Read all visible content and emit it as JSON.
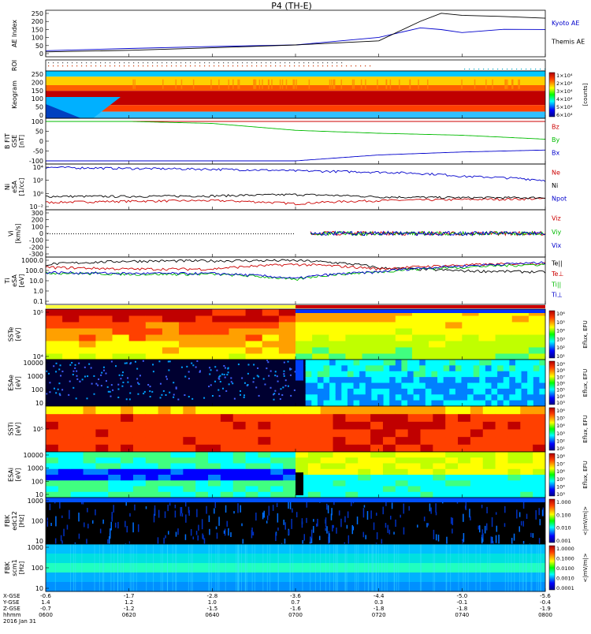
{
  "title": "P4 (TH-E)",
  "date_label": "2016 Jan 31",
  "colors": {
    "black": "#000000",
    "blue": "#0000cc",
    "red": "#cc0000",
    "green": "#00bb00"
  },
  "footer": {
    "row_labels": [
      "X-GSE",
      "Y-GSE",
      "Z-GSE",
      "hhmm"
    ],
    "columns": [
      {
        "x": "-0.6",
        "y": "1.4",
        "z": "-0.7",
        "t": "0600"
      },
      {
        "x": "-1.7",
        "y": "1.2",
        "z": "-1.2",
        "t": "0620"
      },
      {
        "x": "-2.8",
        "y": "1.0",
        "z": "-1.5",
        "t": "0640"
      },
      {
        "x": "-3.6",
        "y": "0.7",
        "z": "-1.6",
        "t": "0700"
      },
      {
        "x": "-4.4",
        "y": "0.3",
        "z": "-1.8",
        "t": "0720"
      },
      {
        "x": "-5.0",
        "y": "-0.1",
        "z": "-1.8",
        "t": "0740"
      },
      {
        "x": "-5.6",
        "y": "-0.4",
        "z": "-1.9",
        "t": "0800"
      }
    ]
  },
  "chart_data": [
    {
      "type": "line",
      "panel": "AE Index",
      "ylabel": "AE Index",
      "ylim": [
        0,
        250
      ],
      "yticks": [
        "0",
        "50",
        "100",
        "150",
        "200",
        "250"
      ],
      "x": [
        "0600",
        "0620",
        "0640",
        "0700",
        "0720",
        "0730",
        "0735",
        "0740",
        "0750",
        "0800"
      ],
      "series": [
        {
          "name": "Kyoto AE",
          "color": "#0000cc",
          "values": [
            20,
            30,
            45,
            55,
            100,
            160,
            150,
            130,
            150,
            150
          ]
        },
        {
          "name": "Themis AE",
          "color": "#000000",
          "values": [
            10,
            20,
            35,
            55,
            80,
            200,
            250,
            240,
            230,
            220
          ]
        }
      ]
    },
    {
      "type": "line",
      "panel": "ROI",
      "ylabel": "ROI"
    },
    {
      "type": "heatmap",
      "panel": "Keogram",
      "ylabel": "Keogram",
      "yticks": [
        "0",
        "50",
        "100",
        "150",
        "200",
        "250"
      ],
      "colorbar": {
        "label": "[counts]",
        "ticks": [
          "1×10⁴",
          "2×10⁴",
          "3×10⁴",
          "4×10⁴",
          "5×10⁴",
          "6×10⁴"
        ]
      }
    },
    {
      "type": "line",
      "panel": "B FIT",
      "ylabel": "B FIT GSE [nT]",
      "ylim": [
        -100,
        100
      ],
      "yticks": [
        "100",
        "50",
        "0",
        "-50",
        "-100"
      ],
      "x": [
        "0600",
        "0620",
        "0640",
        "0700",
        "0720",
        "0740",
        "0800"
      ],
      "series": [
        {
          "name": "Bz",
          "color": "#cc0000",
          "values": [
            100,
            100,
            100,
            100,
            100,
            100,
            100
          ]
        },
        {
          "name": "By",
          "color": "#00bb00",
          "values": [
            100,
            100,
            90,
            55,
            40,
            30,
            10
          ]
        },
        {
          "name": "Bx",
          "color": "#0000cc",
          "values": [
            -100,
            -100,
            -100,
            -100,
            -70,
            -55,
            -45
          ]
        }
      ]
    },
    {
      "type": "line",
      "panel": "Ni",
      "ylabel": "Ni eSA [1/cc]",
      "ylim_label": "log",
      "yticks": [
        "10⁻²",
        "10⁰",
        "10²",
        "10⁴"
      ],
      "x": [
        "0600",
        "0620",
        "0640",
        "0700",
        "0720",
        "0740",
        "0800"
      ],
      "series": [
        {
          "name": "Ne",
          "color": "#cc0000",
          "values": [
            0.05,
            0.08,
            0.1,
            0.03,
            0.1,
            0.15,
            0.2
          ]
        },
        {
          "name": "Ni",
          "color": "#000000",
          "values": [
            0.5,
            0.5,
            0.6,
            1.0,
            0.4,
            0.3,
            0.3
          ]
        },
        {
          "name": "Npot",
          "color": "#0000cc",
          "values": [
            30000,
            20000,
            15000,
            8000,
            5000,
            1000,
            200
          ]
        }
      ]
    },
    {
      "type": "line",
      "panel": "Vi",
      "ylabel": "Vi [km/s]",
      "ylim": [
        -300,
        300
      ],
      "yticks": [
        "300",
        "200",
        "100",
        "0",
        "-100",
        "-200",
        "-300"
      ],
      "series": [
        {
          "name": "Viz",
          "color": "#cc0000"
        },
        {
          "name": "Viy",
          "color": "#00bb00"
        },
        {
          "name": "Vix",
          "color": "#0000cc"
        }
      ]
    },
    {
      "type": "line",
      "panel": "Ti",
      "ylabel": "Ti eSA [eV]",
      "yticks": [
        "1000.0",
        "100.0",
        "10.0",
        "1.0",
        "0.1"
      ],
      "x": [
        "0600",
        "0620",
        "0640",
        "0700",
        "0720",
        "0740",
        "0800"
      ],
      "series": [
        {
          "name": "Te||",
          "color": "#000000",
          "values": [
            600,
            1300,
            1400,
            1500,
            250,
            130,
            100
          ]
        },
        {
          "name": "Te⊥",
          "color": "#cc0000",
          "values": [
            300,
            200,
            200,
            600,
            200,
            500,
            800
          ]
        },
        {
          "name": "Ti||",
          "color": "#00bb00",
          "values": [
            80,
            60,
            60,
            15,
            100,
            300,
            600
          ]
        },
        {
          "name": "Ti⊥",
          "color": "#0000cc",
          "values": [
            90,
            70,
            70,
            20,
            100,
            400,
            900
          ]
        }
      ]
    },
    {
      "type": "heatmap",
      "panel": "SST e",
      "ylabel": "SSTe [eV]",
      "yticks": [
        "10⁵",
        "10⁴"
      ],
      "colorbar": {
        "label": "Eflux, EFU",
        "ticks": [
          "10⁶",
          "10⁵",
          "10⁴",
          "10³",
          "10²",
          "10¹"
        ]
      }
    },
    {
      "type": "heatmap",
      "panel": "ESA e",
      "ylabel": "ESAe [eV]",
      "yticks": [
        "10000",
        "1000",
        "100",
        "10"
      ],
      "colorbar": {
        "label": "Eflux, EFU",
        "ticks": [
          "10⁹",
          "10⁸",
          "10⁷",
          "10⁶",
          "10⁵",
          "10⁴",
          "10³"
        ]
      }
    },
    {
      "type": "heatmap",
      "panel": "SST i",
      "ylabel": "SSTi [eV]",
      "yticks": [
        "10⁵"
      ],
      "colorbar": {
        "label": "Eflux, EFU",
        "ticks": [
          "10⁶",
          "10⁵",
          "10⁴",
          "10³",
          "10²",
          "10¹"
        ]
      }
    },
    {
      "type": "heatmap",
      "panel": "ESA i",
      "ylabel": "ESAi [eV]",
      "yticks": [
        "10000",
        "1000",
        "100",
        "10"
      ],
      "colorbar": {
        "label": "Eflux, EFU",
        "ticks": [
          "10⁸",
          "10⁷",
          "10⁶",
          "10⁵",
          "10⁴",
          "10³"
        ]
      }
    },
    {
      "type": "heatmap",
      "panel": "FBK edc12",
      "ylabel": "FBK edc12 [Hz]",
      "yticks": [
        "1000",
        "100",
        "10"
      ],
      "colorbar": {
        "label": "<|mV/m|>",
        "ticks": [
          "1.000",
          "0.100",
          "0.010",
          "0.001"
        ]
      }
    },
    {
      "type": "heatmap",
      "panel": "FBK scm1",
      "ylabel": "FBK scm1 [Hz]",
      "yticks": [
        "1000",
        "100",
        "10"
      ],
      "colorbar": {
        "label": "<|mV/m|>",
        "ticks": [
          "1.0000",
          "0.1000",
          "0.0100",
          "0.0010",
          "0.0001"
        ]
      }
    }
  ]
}
